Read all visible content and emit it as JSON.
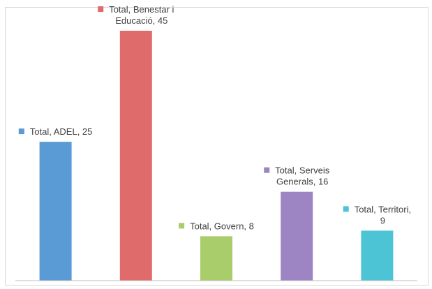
{
  "chart_data": {
    "type": "bar",
    "title": "",
    "xlabel": "",
    "ylabel": "",
    "ylim": [
      0,
      45
    ],
    "grid": false,
    "legend": "none",
    "categories": [
      "ADEL",
      "Benestar i Educació",
      "Govern",
      "Serveis Generals",
      "Territori"
    ],
    "values": [
      25,
      45,
      8,
      16,
      9
    ],
    "colors": [
      "#5b9bd5",
      "#e06b6b",
      "#a9cd6b",
      "#9d85c3",
      "#4cc4d6"
    ],
    "data_labels": [
      [
        "Total, ADEL, 25"
      ],
      [
        "Total, Benestar i",
        "Educació, 45"
      ],
      [
        "Total, Govern, 8"
      ],
      [
        "Total, Serveis",
        "Generals, 16"
      ],
      [
        "Total, Territori,",
        "9"
      ]
    ]
  }
}
